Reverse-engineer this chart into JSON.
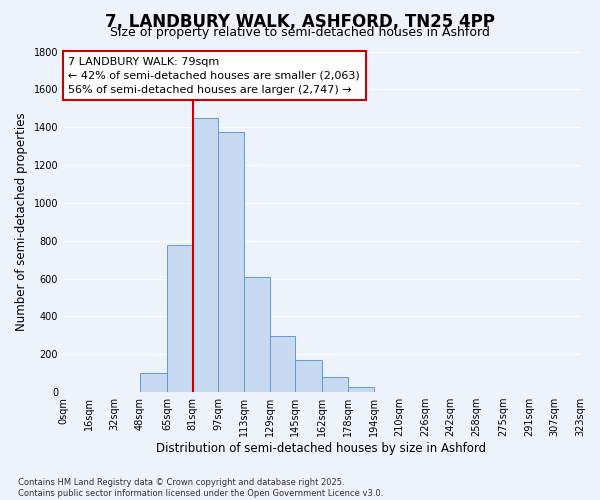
{
  "title": "7, LANDBURY WALK, ASHFORD, TN25 4PP",
  "subtitle": "Size of property relative to semi-detached houses in Ashford",
  "xlabel": "Distribution of semi-detached houses by size in Ashford",
  "ylabel": "Number of semi-detached properties",
  "bar_edges": [
    0,
    16,
    32,
    48,
    65,
    81,
    97,
    113,
    129,
    145,
    162,
    178,
    194,
    210,
    226,
    242,
    258,
    275,
    291,
    307,
    323
  ],
  "bar_heights": [
    0,
    0,
    0,
    100,
    775,
    1450,
    1375,
    610,
    295,
    170,
    80,
    25,
    0,
    0,
    0,
    0,
    0,
    0,
    0,
    0
  ],
  "bar_color": "#c6d9f1",
  "bar_edge_color": "#5b9bd5",
  "property_line_x": 81,
  "property_line_color": "#cc0000",
  "annotation_line1": "7 LANDBURY WALK: 79sqm",
  "annotation_line2": "← 42% of semi-detached houses are smaller (2,063)",
  "annotation_line3": "56% of semi-detached houses are larger (2,747) →",
  "annotation_box_color": "#ffffff",
  "annotation_box_edge_color": "#cc0000",
  "ylim": [
    0,
    1800
  ],
  "yticks": [
    0,
    200,
    400,
    600,
    800,
    1000,
    1200,
    1400,
    1600,
    1800
  ],
  "xtick_labels": [
    "0sqm",
    "16sqm",
    "32sqm",
    "48sqm",
    "65sqm",
    "81sqm",
    "97sqm",
    "113sqm",
    "129sqm",
    "145sqm",
    "162sqm",
    "178sqm",
    "194sqm",
    "210sqm",
    "226sqm",
    "242sqm",
    "258sqm",
    "275sqm",
    "291sqm",
    "307sqm",
    "323sqm"
  ],
  "background_color": "#eef2fb",
  "grid_color": "#ffffff",
  "footnote": "Contains HM Land Registry data © Crown copyright and database right 2025.\nContains public sector information licensed under the Open Government Licence v3.0.",
  "title_fontsize": 12,
  "subtitle_fontsize": 9,
  "axis_label_fontsize": 8.5,
  "tick_fontsize": 7,
  "annotation_fontsize": 8,
  "footnote_fontsize": 6
}
